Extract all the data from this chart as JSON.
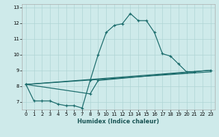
{
  "xlabel": "Humidex (Indice chaleur)",
  "bg_color": "#ceeaea",
  "line_color": "#1a6b6b",
  "grid_color": "#aed4d4",
  "xlim": [
    -0.5,
    23.5
  ],
  "ylim": [
    6.5,
    13.2
  ],
  "xticks": [
    0,
    1,
    2,
    3,
    4,
    5,
    6,
    7,
    8,
    9,
    10,
    11,
    12,
    13,
    14,
    15,
    16,
    17,
    18,
    19,
    20,
    21,
    22,
    23
  ],
  "yticks": [
    7,
    8,
    9,
    10,
    11,
    12,
    13
  ],
  "curve": {
    "x": [
      0,
      1,
      2,
      3,
      4,
      5,
      6,
      7,
      8,
      9,
      10,
      11,
      12,
      13,
      14,
      15,
      16,
      17,
      18,
      19,
      20,
      21
    ],
    "y": [
      8.1,
      7.05,
      7.05,
      7.05,
      6.85,
      6.75,
      6.75,
      6.6,
      8.35,
      10.0,
      11.4,
      11.85,
      11.95,
      12.6,
      12.15,
      12.15,
      11.4,
      10.05,
      9.9,
      9.4,
      8.9,
      8.9
    ]
  },
  "line_upper": {
    "x": [
      0,
      23
    ],
    "y": [
      8.1,
      9.0
    ]
  },
  "line_lower": {
    "x": [
      0,
      23
    ],
    "y": [
      8.1,
      8.9
    ]
  },
  "line_mid": {
    "x": [
      0,
      8,
      9,
      23
    ],
    "y": [
      8.1,
      7.5,
      8.35,
      9.0
    ]
  }
}
